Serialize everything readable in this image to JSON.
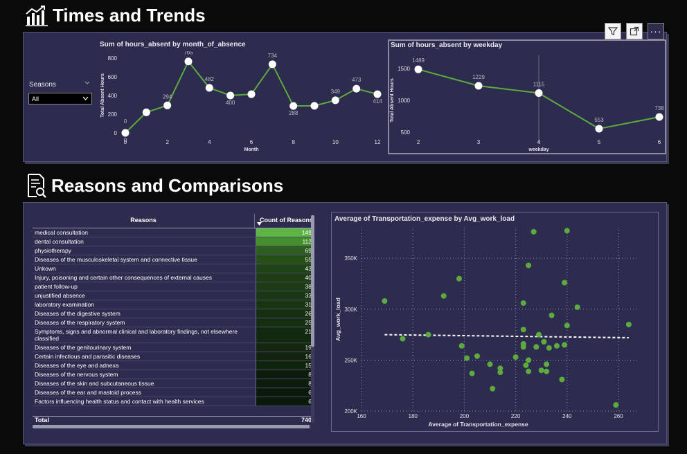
{
  "sections": {
    "times_title": "Times and Trends",
    "reasons_title": "Reasons and Comparisons"
  },
  "slicer": {
    "label": "Seasons",
    "value": "All"
  },
  "month_chart": {
    "title": "Sum of hours_absent by month_of_absence",
    "xlabel": "Month",
    "ylabel": "Total Absent Hours",
    "x": [
      0,
      1,
      2,
      3,
      4,
      5,
      6,
      7,
      8,
      9,
      10,
      11,
      12
    ],
    "y": [
      0,
      220,
      294,
      765,
      482,
      400,
      414,
      734,
      288,
      290,
      349,
      473,
      414
    ],
    "labels": [
      "0",
      "",
      "294",
      "765",
      "482",
      "400",
      "",
      "734",
      "288",
      "",
      "349",
      "473",
      "414"
    ],
    "xticks": [
      "0",
      "2",
      "4",
      "6",
      "8",
      "10",
      "12"
    ],
    "yticks": [
      "0",
      "200",
      "400",
      "600",
      "800"
    ],
    "ylim": [
      0,
      800
    ],
    "color": "#5dab3e"
  },
  "weekday_chart": {
    "title": "Sum of hours_absent by weekday",
    "xlabel": "weekday",
    "ylabel": "Total Absent Hours",
    "x": [
      2,
      3,
      4,
      5,
      6
    ],
    "y": [
      1489,
      1229,
      1115,
      553,
      738
    ],
    "labels": [
      "1489",
      "1229",
      "1115",
      "553",
      "738"
    ],
    "xticks": [
      "2",
      "3",
      "4",
      "5",
      "6"
    ],
    "yticks": [
      "500",
      "1000",
      "1500"
    ],
    "ylim": [
      400,
      1600
    ],
    "color": "#5dab3e"
  },
  "table": {
    "col1": "Reasons",
    "col2": "Count of Reasons",
    "rows": [
      {
        "reason": "medical consultation",
        "count": "149"
      },
      {
        "reason": "dental consultation",
        "count": "112"
      },
      {
        "reason": "physiotherapy",
        "count": "69"
      },
      {
        "reason": "Diseases of the musculoskeletal system and connective tissue",
        "count": "55"
      },
      {
        "reason": "Unkown",
        "count": "43"
      },
      {
        "reason": "Injury, poisoning and certain other consequences of external causes",
        "count": "40"
      },
      {
        "reason": "patient follow-up",
        "count": "38"
      },
      {
        "reason": "unjustified absence",
        "count": "33"
      },
      {
        "reason": "laboratory examination",
        "count": "31"
      },
      {
        "reason": "Diseases of the digestive system",
        "count": "26"
      },
      {
        "reason": "Diseases of the respiratory system",
        "count": "25"
      },
      {
        "reason": "Symptoms, signs and abnormal clinical and laboratory findings, not elsewhere classified",
        "count": "21"
      },
      {
        "reason": "Diseases of the genitourinary system",
        "count": "19"
      },
      {
        "reason": "Certain infectious and parasitic diseases",
        "count": "16"
      },
      {
        "reason": "Diseases of the eye and adnexa",
        "count": "15"
      },
      {
        "reason": "Diseases of the nervous system",
        "count": "8"
      },
      {
        "reason": "Diseases of the skin and subcutaneous tissue",
        "count": "8"
      },
      {
        "reason": "Diseases of the ear and mastoid process",
        "count": "6"
      },
      {
        "reason": "Factors influencing health status and contact with health services",
        "count": "6"
      }
    ],
    "total_label": "Total",
    "total_value": "740"
  },
  "scatter": {
    "title": "Average of Transportation_expense by Avg_work_load",
    "xlabel": "Average of Transportation_expense",
    "ylabel": "Avg_work_load",
    "xticks": [
      "160",
      "180",
      "200",
      "220",
      "240",
      "260"
    ],
    "yticks": [
      "200K",
      "250K",
      "300K",
      "350K"
    ],
    "color": "#5dab3e"
  },
  "chart_data": [
    {
      "type": "line",
      "title": "Sum of hours_absent by month_of_absence",
      "xlabel": "Month",
      "ylabel": "Total Absent Hours",
      "x": [
        0,
        1,
        2,
        3,
        4,
        5,
        6,
        7,
        8,
        9,
        10,
        11,
        12
      ],
      "y": [
        0,
        220,
        294,
        765,
        482,
        400,
        414,
        734,
        288,
        290,
        349,
        473,
        414
      ],
      "ylim": [
        0,
        800
      ]
    },
    {
      "type": "line",
      "title": "Sum of hours_absent by weekday",
      "xlabel": "weekday",
      "ylabel": "Total Absent Hours",
      "x": [
        2,
        3,
        4,
        5,
        6
      ],
      "y": [
        1489,
        1229,
        1115,
        553,
        738
      ],
      "ylim": [
        400,
        1600
      ]
    },
    {
      "type": "scatter",
      "title": "Average of Transportation_expense by Avg_work_load",
      "xlabel": "Average of Transportation_expense",
      "ylabel": "Avg_work_load",
      "xlim": [
        160,
        267
      ],
      "ylim": [
        200000,
        380000
      ],
      "trend_line": true,
      "points": [
        [
          169,
          308000
        ],
        [
          176,
          271000
        ],
        [
          186,
          275000
        ],
        [
          192,
          313000
        ],
        [
          198,
          330000
        ],
        [
          199,
          264000
        ],
        [
          201,
          252000
        ],
        [
          203,
          237000
        ],
        [
          205,
          254000
        ],
        [
          210,
          246000
        ],
        [
          211,
          222000
        ],
        [
          214,
          242000
        ],
        [
          214,
          238000
        ],
        [
          220,
          253000
        ],
        [
          223,
          306000
        ],
        [
          223,
          280000
        ],
        [
          223,
          266000
        ],
        [
          223,
          263000
        ],
        [
          224,
          245000
        ],
        [
          225,
          343000
        ],
        [
          225,
          250000
        ],
        [
          225,
          239000
        ],
        [
          227,
          376000
        ],
        [
          228,
          263000
        ],
        [
          229,
          275000
        ],
        [
          230,
          240000
        ],
        [
          231,
          268000
        ],
        [
          232,
          246000
        ],
        [
          232,
          239000
        ],
        [
          233,
          262000
        ],
        [
          234,
          294000
        ],
        [
          236,
          264000
        ],
        [
          238,
          231000
        ],
        [
          239,
          326000
        ],
        [
          239,
          265000
        ],
        [
          240,
          377000
        ],
        [
          240,
          284000
        ],
        [
          244,
          302000
        ],
        [
          259,
          206000
        ],
        [
          264,
          285000
        ]
      ]
    }
  ]
}
